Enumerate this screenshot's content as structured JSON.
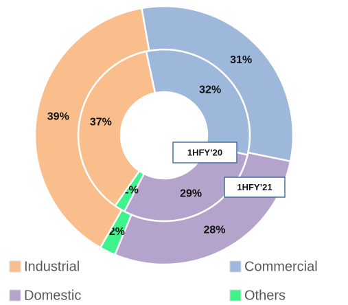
{
  "chart_data": {
    "type": "donut",
    "categories": [
      "Commercial",
      "Domestic",
      "Others",
      "Industrial"
    ],
    "colors": [
      "#9db8db",
      "#b4a3cb",
      "#3ef28c",
      "#f9be8c"
    ],
    "series": [
      {
        "name": "1HFY’20",
        "values": [
          32,
          29,
          2,
          37
        ],
        "value_labels": [
          "32%",
          "29%",
          "2%",
          "37%"
        ]
      },
      {
        "name": "1HFY’21",
        "values": [
          31,
          28,
          2,
          39
        ],
        "value_labels": [
          "31%",
          "28%",
          "2%",
          "39%"
        ]
      }
    ],
    "legend_order": [
      3,
      0,
      1,
      2
    ]
  }
}
